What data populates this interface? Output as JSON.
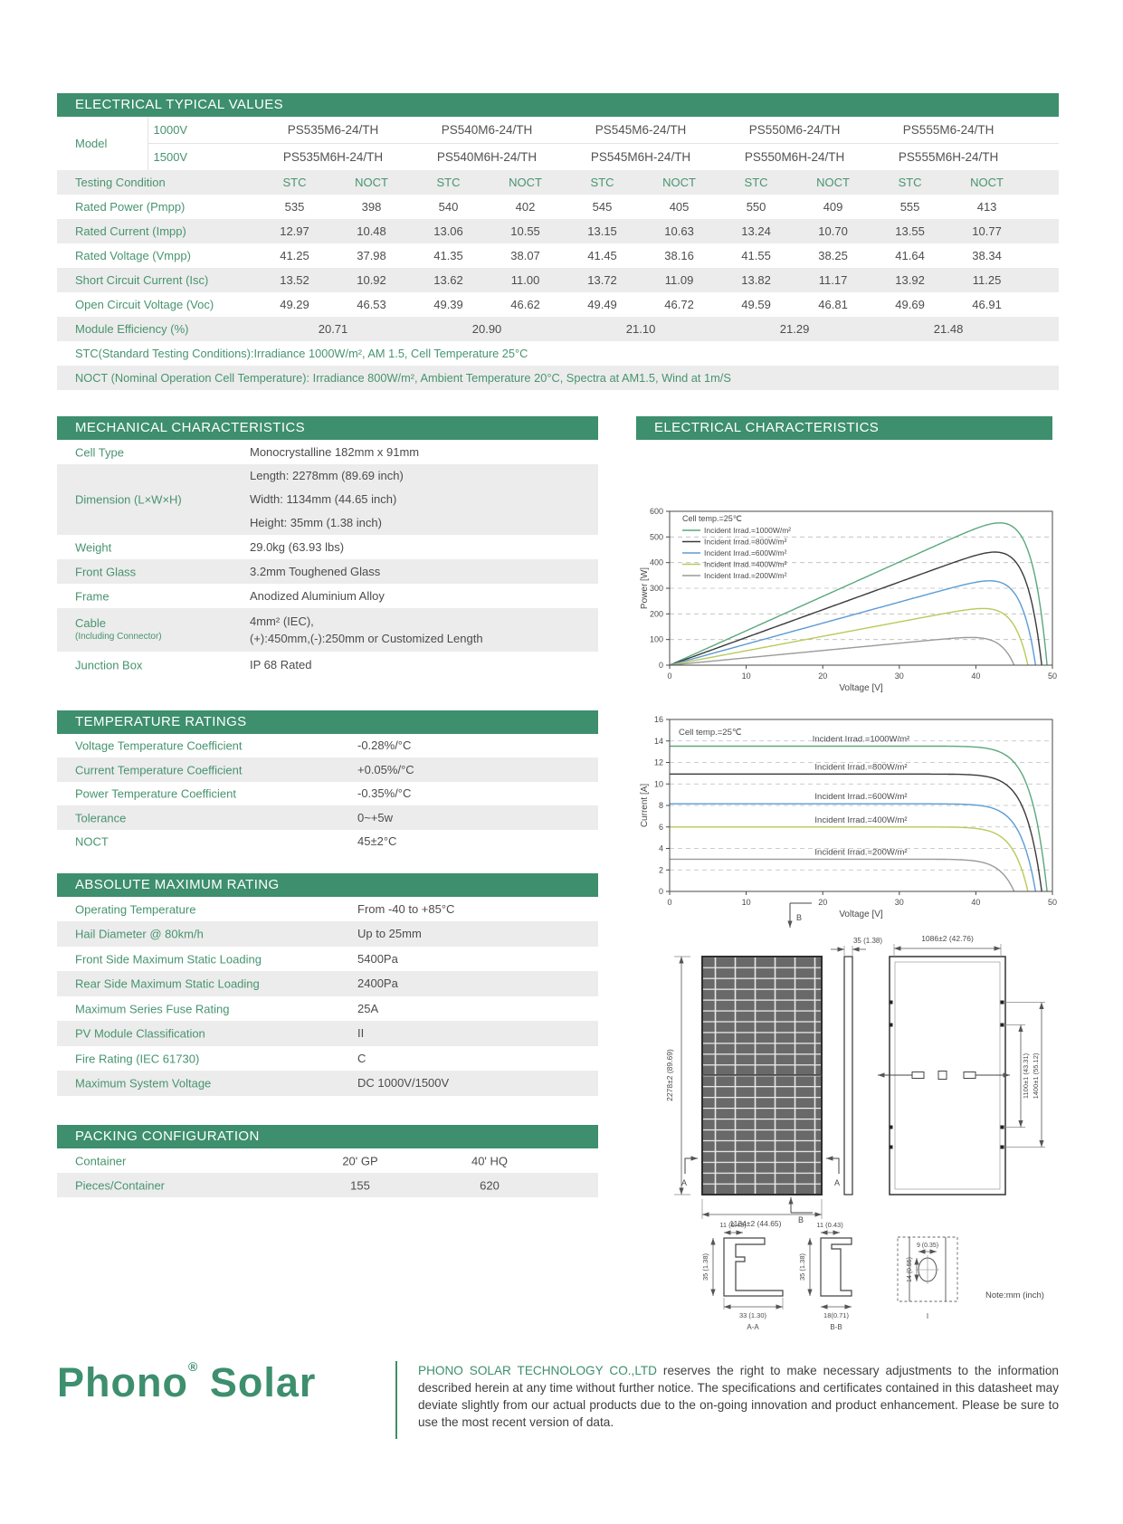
{
  "colors": {
    "green": "#3d8f6d",
    "stripe": "#ececec",
    "text": "#4c4c4c"
  },
  "electrical": {
    "title": "ELECTRICAL TYPICAL VALUES",
    "model_label": "Model",
    "voltage_rows": [
      {
        "label": "1000V",
        "models": [
          "PS535M6-24/TH",
          "PS540M6-24/TH",
          "PS545M6-24/TH",
          "PS550M6-24/TH",
          "PS555M6-24/TH"
        ]
      },
      {
        "label": "1500V",
        "models": [
          "PS535M6H-24/TH",
          "PS540M6H-24/TH",
          "PS545M6H-24/TH",
          "PS550M6H-24/TH",
          "PS555M6H-24/TH"
        ]
      }
    ],
    "testing_label": "Testing Condition",
    "cond_headers": [
      "STC",
      "NOCT"
    ],
    "rows": [
      {
        "label": "Rated Power (Pmpp)",
        "values": [
          "535",
          "398",
          "540",
          "402",
          "545",
          "405",
          "550",
          "409",
          "555",
          "413"
        ]
      },
      {
        "label": "Rated Current (Impp)",
        "values": [
          "12.97",
          "10.48",
          "13.06",
          "10.55",
          "13.15",
          "10.63",
          "13.24",
          "10.70",
          "13.55",
          "10.77"
        ]
      },
      {
        "label": "Rated Voltage (Vmpp)",
        "values": [
          "41.25",
          "37.98",
          "41.35",
          "38.07",
          "41.45",
          "38.16",
          "41.55",
          "38.25",
          "41.64",
          "38.34"
        ]
      },
      {
        "label": "Short Circuit Current (Isc)",
        "values": [
          "13.52",
          "10.92",
          "13.62",
          "11.00",
          "13.72",
          "11.09",
          "13.82",
          "11.17",
          "13.92",
          "11.25"
        ]
      },
      {
        "label": "Open Circuit Voltage (Voc)",
        "values": [
          "49.29",
          "46.53",
          "49.39",
          "46.62",
          "49.49",
          "46.72",
          "49.59",
          "46.81",
          "49.69",
          "46.91"
        ]
      }
    ],
    "efficiency_row": {
      "label": "Module Efficiency (%)",
      "values": [
        "20.71",
        "20.90",
        "21.10",
        "21.29",
        "21.48"
      ]
    },
    "notes": [
      "STC(Standard Testing Conditions):Irradiance 1000W/m², AM 1.5, Cell Temperature 25°C",
      "NOCT (Nominal Operation Cell Temperature): Irradiance 800W/m², Ambient Temperature 20°C, Spectra at AM1.5, Wind at 1m/S"
    ]
  },
  "sections": {
    "mechanical": {
      "title": "MECHANICAL CHARACTERISTICS",
      "rows": [
        {
          "label": "Cell Type",
          "lines": [
            "Monocrystalline 182mm x 91mm"
          ]
        },
        {
          "label": "Dimension (L×W×H)",
          "lines": [
            "Length: 2278mm (89.69 inch)",
            "Width: 1134mm (44.65 inch)",
            "Height: 35mm (1.38 inch)"
          ]
        },
        {
          "label": "Weight",
          "lines": [
            "29.0kg (63.93 lbs)"
          ]
        },
        {
          "label": "Front Glass",
          "lines": [
            "3.2mm Toughened Glass"
          ]
        },
        {
          "label": "Frame",
          "lines": [
            "Anodized Aluminium Alloy"
          ]
        },
        {
          "label": "Cable",
          "sub": "(Including Connector)",
          "lines": [
            "4mm² (IEC),",
            "(+):450mm,(-):250mm or Customized Length"
          ]
        },
        {
          "label": "Junction Box",
          "lines": [
            "IP 68 Rated"
          ]
        }
      ]
    },
    "temperature": {
      "title": "TEMPERATURE RATINGS",
      "rows": [
        {
          "label": "Voltage Temperature Coefficient",
          "lines": [
            "-0.28%/°C"
          ]
        },
        {
          "label": "Current Temperature Coefficient",
          "lines": [
            "+0.05%/°C"
          ]
        },
        {
          "label": "Power Temperature Coefficient",
          "lines": [
            "-0.35%/°C"
          ]
        },
        {
          "label": "Tolerance",
          "lines": [
            "0~+5w"
          ]
        },
        {
          "label": "NOCT",
          "lines": [
            "45±2°C"
          ]
        }
      ]
    },
    "absolute": {
      "title": "ABSOLUTE MAXIMUM RATING",
      "rows": [
        {
          "label": "Operating Temperature",
          "lines": [
            "From -40 to +85°C"
          ]
        },
        {
          "label": "Hail Diameter @ 80km/h",
          "lines": [
            "Up to 25mm"
          ]
        },
        {
          "label": "Front Side Maximum Static Loading",
          "lines": [
            "5400Pa"
          ]
        },
        {
          "label": "Rear Side Maximum Static Loading",
          "lines": [
            "2400Pa"
          ]
        },
        {
          "label": "Maximum Series Fuse Rating",
          "lines": [
            "25A"
          ]
        },
        {
          "label": "PV Module Classification",
          "lines": [
            "II"
          ]
        },
        {
          "label": "Fire Rating (IEC 61730)",
          "lines": [
            "C"
          ]
        },
        {
          "label": "Maximum System Voltage",
          "lines": [
            "DC 1000V/1500V"
          ]
        }
      ]
    },
    "packing": {
      "title": "PACKING CONFIGURATION",
      "rows": [
        {
          "label": "Container",
          "values": [
            "20' GP",
            "40' HQ"
          ]
        },
        {
          "label": "Pieces/Container",
          "values": [
            "155",
            "620"
          ]
        }
      ]
    }
  },
  "electrical_characteristics": {
    "title": "ELECTRICAL CHARACTERISTICS"
  },
  "chart_data": [
    {
      "type": "line",
      "title": "P-V curves",
      "annotation": "Cell temp.=25℃",
      "xlabel": "Voltage [V]",
      "ylabel": "Power [W]",
      "xlim": [
        0,
        50
      ],
      "ylim": [
        0,
        600
      ],
      "xticks": [
        0,
        10,
        20,
        30,
        40,
        50
      ],
      "yticks": [
        0,
        100,
        200,
        300,
        400,
        500,
        600
      ],
      "grid": "dashed-horizontal",
      "legend_position": "top-left",
      "series": [
        {
          "name": "Incident Irrad.=1000W/m²",
          "color": "#5aa87c",
          "isc": 13.52,
          "voc": 49.3,
          "pmax": 555
        },
        {
          "name": "Incident Irrad.=800W/m²",
          "color": "#3a3a3a",
          "isc": 10.92,
          "voc": 48.6,
          "pmax": 441
        },
        {
          "name": "Incident Irrad.=600W/m²",
          "color": "#5b9bd5",
          "isc": 8.15,
          "voc": 47.8,
          "pmax": 329
        },
        {
          "name": "Incident Irrad.=400W/m²",
          "color": "#b9c95a",
          "isc": 6.0,
          "voc": 46.8,
          "pmax": 221
        },
        {
          "name": "Incident Irrad.=200W/m²",
          "color": "#9a9a9a",
          "isc": 3.0,
          "voc": 45.0,
          "pmax": 108
        }
      ]
    },
    {
      "type": "line",
      "title": "I-V curves",
      "annotation": "Cell temp.=25℃",
      "xlabel": "Voltage [V]",
      "ylabel": "Current [A]",
      "xlim": [
        0,
        50
      ],
      "ylim": [
        0,
        16
      ],
      "xticks": [
        0,
        10,
        20,
        30,
        40,
        50
      ],
      "yticks": [
        0,
        2,
        4,
        6,
        8,
        10,
        12,
        14,
        16
      ],
      "grid": "dashed-horizontal",
      "legend_position": "inline-labels",
      "series": [
        {
          "name": "Incident Irrad.=1000W/m²",
          "color": "#5aa87c",
          "isc": 13.52,
          "voc": 49.3
        },
        {
          "name": "Incident Irrad.=800W/m²",
          "color": "#3a3a3a",
          "isc": 10.92,
          "voc": 48.6
        },
        {
          "name": "Incident Irrad.=600W/m²",
          "color": "#5b9bd5",
          "isc": 8.15,
          "voc": 47.8
        },
        {
          "name": "Incident Irrad.=400W/m²",
          "color": "#b9c95a",
          "isc": 6.0,
          "voc": 46.8
        },
        {
          "name": "Incident Irrad.=200W/m²",
          "color": "#9a9a9a",
          "isc": 3.0,
          "voc": 45.0
        }
      ]
    }
  ],
  "diagram": {
    "front_height": "2278±2 (89.69)",
    "front_width": "1134±2 (44.65)",
    "side_thickness": "35 (1.38)",
    "rear_width": "1086±2 (42.76)",
    "mount_inner": "1100±1 (43.31)",
    "mount_outer": "1400±1 (55.12)",
    "marker_a": "A",
    "marker_b": "B",
    "section_aa": {
      "top": "11 (0.43)",
      "side": "35 (1.38)",
      "bottom": "33 (1.30)",
      "label": "A-A"
    },
    "section_bb": {
      "top": "11 (0.43)",
      "side": "35 (1.38)",
      "bottom": "18(0.71)",
      "label": "B-B"
    },
    "detail_i": {
      "width": "9 (0.35)",
      "height": "14 (0.55)",
      "label": "I"
    },
    "note": "Note:mm (inch)"
  },
  "footer": {
    "logo_word1": "Phono",
    "logo_reg": "®",
    "logo_word2": "Solar",
    "company": "PHONO SOLAR TECHNOLOGY CO.,LTD",
    "disclaimer": " reserves the right to make necessary adjustments to the information described herein at any time without further notice. The specifications and certificates contained in this datasheet may deviate slightly from our actual products due to the on-going innovation and product enhancement. Please be sure to use the most recent version of data."
  }
}
